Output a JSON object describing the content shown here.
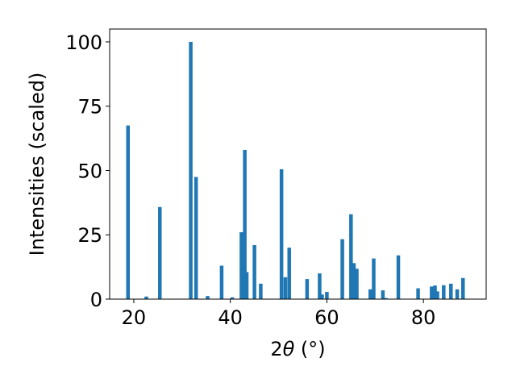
{
  "chart_data": {
    "type": "bar",
    "title": "",
    "xlabel_parts": {
      "pre": "2",
      "theta": "θ",
      "post": " (°)"
    },
    "ylabel": "Intensities (scaled)",
    "xlim": [
      15,
      93
    ],
    "ylim": [
      0,
      105
    ],
    "xticks": [
      20,
      40,
      60,
      80
    ],
    "yticks": [
      0,
      25,
      50,
      75,
      100
    ],
    "bar_width": 0.75,
    "grid": false,
    "bar_color": "#1f77b4",
    "points": [
      {
        "x": 18.8,
        "y": 67.5
      },
      {
        "x": 22.6,
        "y": 1.0
      },
      {
        "x": 25.4,
        "y": 35.8
      },
      {
        "x": 31.8,
        "y": 100.0
      },
      {
        "x": 32.9,
        "y": 47.5
      },
      {
        "x": 35.3,
        "y": 1.2
      },
      {
        "x": 38.2,
        "y": 13.0
      },
      {
        "x": 40.4,
        "y": 0.7
      },
      {
        "x": 42.3,
        "y": 26.0
      },
      {
        "x": 43.0,
        "y": 58.0
      },
      {
        "x": 43.4,
        "y": 10.5
      },
      {
        "x": 45.0,
        "y": 21.0
      },
      {
        "x": 46.3,
        "y": 6.0
      },
      {
        "x": 50.6,
        "y": 50.5
      },
      {
        "x": 51.4,
        "y": 8.5
      },
      {
        "x": 52.2,
        "y": 20.0
      },
      {
        "x": 55.9,
        "y": 7.8
      },
      {
        "x": 58.5,
        "y": 10.0
      },
      {
        "x": 59.0,
        "y": 1.8
      },
      {
        "x": 60.0,
        "y": 2.8
      },
      {
        "x": 63.2,
        "y": 23.3
      },
      {
        "x": 65.0,
        "y": 33.0
      },
      {
        "x": 65.6,
        "y": 14.0
      },
      {
        "x": 66.2,
        "y": 11.8
      },
      {
        "x": 69.0,
        "y": 3.8
      },
      {
        "x": 69.7,
        "y": 15.8
      },
      {
        "x": 71.6,
        "y": 3.4
      },
      {
        "x": 72.2,
        "y": 0.4
      },
      {
        "x": 74.8,
        "y": 17.0
      },
      {
        "x": 78.9,
        "y": 4.2
      },
      {
        "x": 81.7,
        "y": 4.9
      },
      {
        "x": 82.4,
        "y": 5.3
      },
      {
        "x": 82.9,
        "y": 3.0
      },
      {
        "x": 84.2,
        "y": 5.4
      },
      {
        "x": 85.7,
        "y": 6.0
      },
      {
        "x": 87.0,
        "y": 3.8
      },
      {
        "x": 88.2,
        "y": 8.2
      }
    ]
  }
}
